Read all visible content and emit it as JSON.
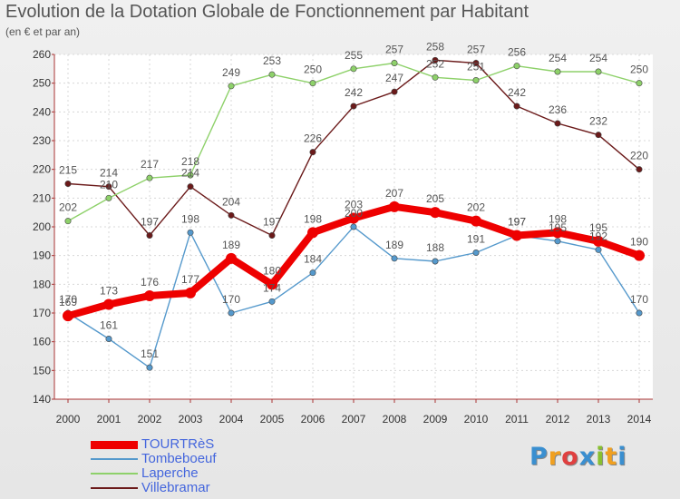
{
  "title": "Evolution de la Dotation Globale de Fonctionnement par Habitant",
  "subtitle": "(en € et par an)",
  "logo": {
    "text": "Proxiti",
    "letters": [
      {
        "ch": "P",
        "color": "#3a8fd0"
      },
      {
        "ch": "r",
        "color": "#f0a020"
      },
      {
        "ch": "o",
        "color": "#e04040"
      },
      {
        "ch": "x",
        "color": "#3a8fd0"
      },
      {
        "ch": "i",
        "color": "#88c030"
      },
      {
        "ch": "t",
        "color": "#f0a020"
      },
      {
        "ch": "i",
        "color": "#3a8fd0"
      }
    ]
  },
  "chart_data": {
    "type": "line",
    "title": "Evolution de la Dotation Globale de Fonctionnement par Habitant",
    "subtitle": "(en € et par an)",
    "x": [
      "2000",
      "2001",
      "2002",
      "2003",
      "2004",
      "2005",
      "2006",
      "2007",
      "2008",
      "2009",
      "2010",
      "2011",
      "2012",
      "2013",
      "2014"
    ],
    "ylim": [
      140,
      260
    ],
    "yticks": [
      140,
      150,
      160,
      170,
      180,
      190,
      200,
      210,
      220,
      230,
      240,
      250,
      260
    ],
    "grid": true,
    "legend_position": "bottom-left",
    "series": [
      {
        "name": "Villebramar",
        "color": "#6b1a1a",
        "values": [
          215,
          214,
          197,
          214,
          204,
          197,
          226,
          242,
          247,
          258,
          257,
          242,
          236,
          232,
          220
        ]
      },
      {
        "name": "Laperche",
        "color": "#8ed16a",
        "values": [
          202,
          210,
          217,
          218,
          249,
          253,
          250,
          255,
          257,
          252,
          251,
          256,
          254,
          254,
          250
        ]
      },
      {
        "name": "Tombeboeuf",
        "color": "#5599cc",
        "values": [
          170,
          161,
          151,
          198,
          170,
          174,
          184,
          200,
          189,
          188,
          191,
          197,
          195,
          192,
          170
        ]
      },
      {
        "name": "TOURTRèS",
        "color": "#ee0000",
        "values": [
          169,
          173,
          176,
          177,
          189,
          180,
          198,
          203,
          207,
          205,
          202,
          197,
          198,
          195,
          190
        ]
      }
    ],
    "legend_order": [
      "TOURTRèS",
      "Tombeboeuf",
      "Laperche",
      "Villebramar"
    ]
  }
}
